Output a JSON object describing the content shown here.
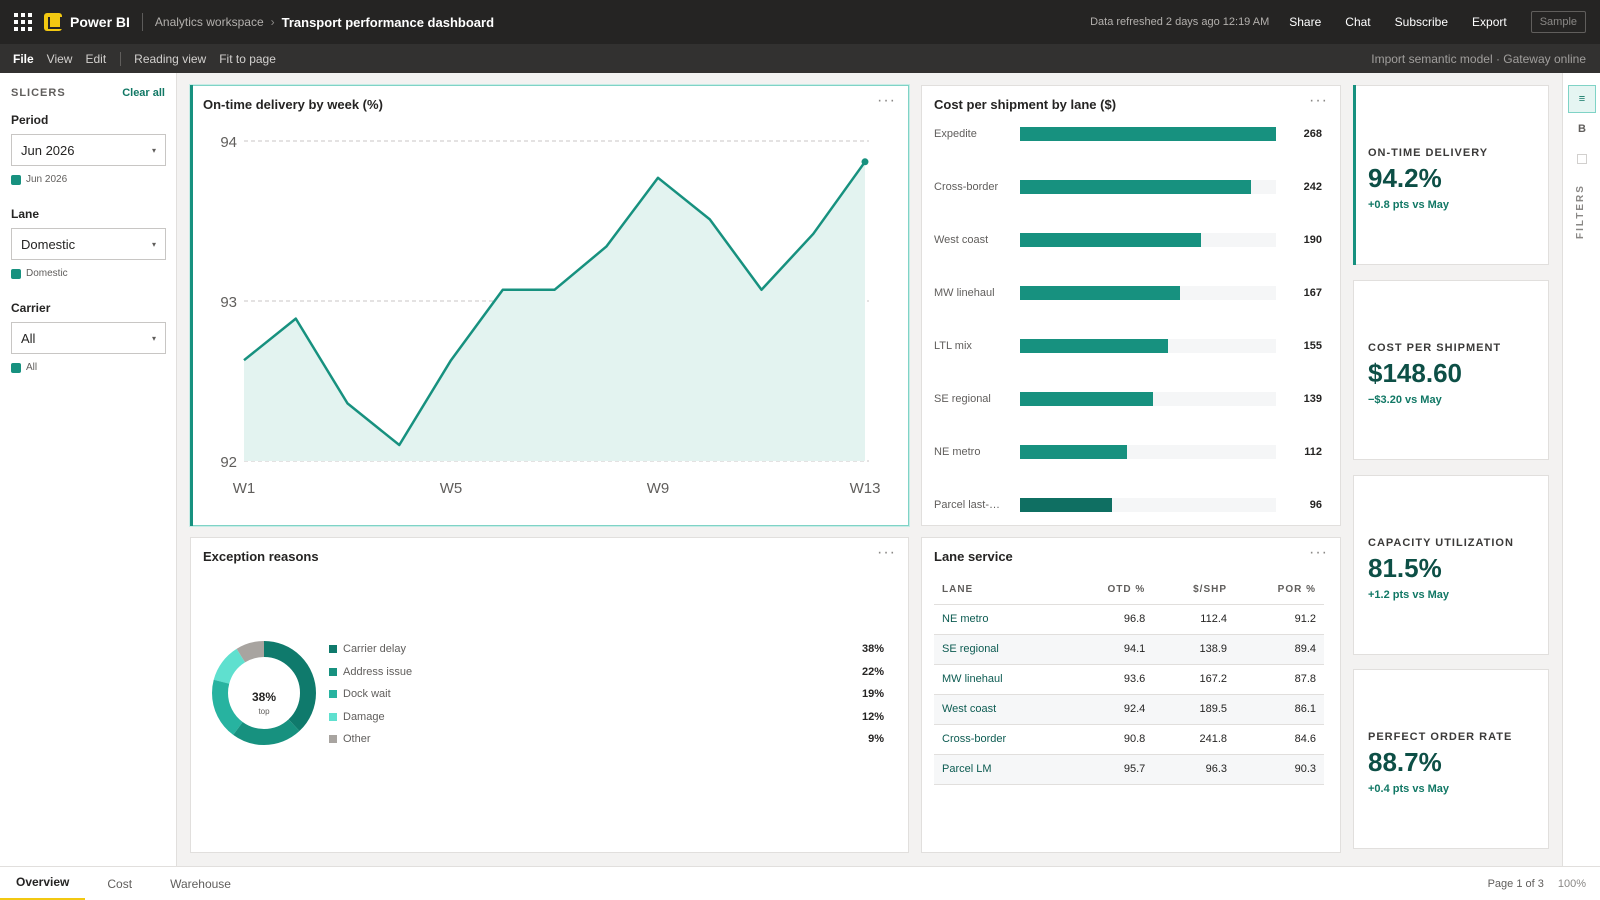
{
  "app": {
    "name": "Power BI",
    "workspace": "Analytics workspace",
    "report_title": "Transport performance dashboard",
    "refreshed": "Data refreshed 2 days ago 12:19 AM",
    "actions": [
      "Share",
      "Chat",
      "Subscribe",
      "Export"
    ],
    "sample_badge": "Sample"
  },
  "menu": {
    "items": [
      "File",
      "View",
      "Edit"
    ],
    "items2": [
      "Reading view",
      "Fit to page"
    ],
    "status": "Import semantic model · Gateway online"
  },
  "slicers": {
    "title": "SLICERS",
    "clear_all": "Clear all",
    "items": [
      {
        "label": "Period",
        "value": "Jun 2026",
        "chip": "Jun 2026"
      },
      {
        "label": "Lane",
        "value": "Domestic",
        "chip": "Domestic"
      },
      {
        "label": "Carrier",
        "value": "All",
        "chip": "All"
      }
    ]
  },
  "visuals": {
    "otd": {
      "title": "On-time delivery by week (%)"
    },
    "cost": {
      "title": "Cost per shipment by lane ($)"
    },
    "exceptions": {
      "title": "Exception reasons",
      "center_value": "38%",
      "center_label": "top"
    },
    "lane_service": {
      "title": "Lane service"
    },
    "more": "···"
  },
  "chart_data": [
    {
      "type": "area",
      "title": "On-time delivery by week (%)",
      "x": [
        "W1",
        "W2",
        "W3",
        "W4",
        "W5",
        "W6",
        "W7",
        "W8",
        "W9",
        "W10",
        "W11",
        "W12",
        "W13"
      ],
      "xticks": [
        "W1",
        "W5",
        "W9",
        "W13"
      ],
      "series": [
        {
          "values": [
            92.63,
            92.89,
            92.36,
            92.1,
            92.63,
            93.07,
            93.07,
            93.34,
            93.77,
            93.51,
            93.07,
            93.42,
            93.87
          ]
        }
      ],
      "ylim": [
        92,
        94
      ],
      "yticks": [
        "94",
        "93",
        "92"
      ],
      "grid": true,
      "color": "#17917f"
    },
    {
      "type": "bar",
      "title": "Cost per shipment by lane ($)",
      "categories": [
        "Expedite",
        "Cross-border",
        "West coast",
        "MW linehaul",
        "LTL mix",
        "SE regional",
        "NE metro",
        "Parcel last-…"
      ],
      "values": [
        268,
        242,
        190,
        167,
        155,
        139,
        112,
        96
      ],
      "labels": [
        "268",
        "242",
        "190",
        "167",
        "155",
        "139",
        "112",
        "96"
      ],
      "xlim": [
        0,
        268
      ],
      "color": "#17917f"
    },
    {
      "type": "pie",
      "title": "Exception reasons",
      "categories": [
        "Carrier delay",
        "Address issue",
        "Dock wait",
        "Damage",
        "Other"
      ],
      "values": [
        38,
        22,
        19,
        12,
        9
      ],
      "labels": [
        "38%",
        "22%",
        "19%",
        "12%",
        "9%"
      ],
      "colors": [
        "#0f7a6c",
        "#17917f",
        "#27b3a0",
        "#5fe0cf",
        "#a8a4a0"
      ]
    }
  ],
  "table": {
    "columns": [
      "LANE",
      "OTD %",
      "$/SHP",
      "POR %"
    ],
    "rows": [
      [
        "NE metro",
        "96.8",
        "112.4",
        "91.2"
      ],
      [
        "SE regional",
        "94.1",
        "138.9",
        "89.4"
      ],
      [
        "MW linehaul",
        "93.6",
        "167.2",
        "87.8"
      ],
      [
        "West coast",
        "92.4",
        "189.5",
        "86.1"
      ],
      [
        "Cross-border",
        "90.8",
        "241.8",
        "84.6"
      ],
      [
        "Parcel LM",
        "95.7",
        "96.3",
        "90.3"
      ]
    ]
  },
  "kpis": [
    {
      "label": "ON-TIME DELIVERY",
      "value": "94.2%",
      "delta": "+0.8 pts vs May"
    },
    {
      "label": "COST PER SHIPMENT",
      "value": "$148.60",
      "delta": "−$3.20 vs May"
    },
    {
      "label": "CAPACITY UTILIZATION",
      "value": "81.5%",
      "delta": "+1.2 pts vs May"
    },
    {
      "label": "PERFECT ORDER RATE",
      "value": "88.7%",
      "delta": "+0.4 pts vs May"
    }
  ],
  "rail": {
    "filters_label": "FILTERS",
    "b_label": "B"
  },
  "tabs": {
    "items": [
      "Overview",
      "Cost",
      "Warehouse"
    ],
    "active": 0,
    "page_info": "Page 1 of 3",
    "zoom": "100%"
  },
  "icons": {
    "waffle": "app-launcher-icon",
    "logo": "power-bi-logo-icon",
    "dropdown": "dropdown-caret-icon",
    "more": "more-options-icon",
    "filters": "filters-pane-icon"
  }
}
